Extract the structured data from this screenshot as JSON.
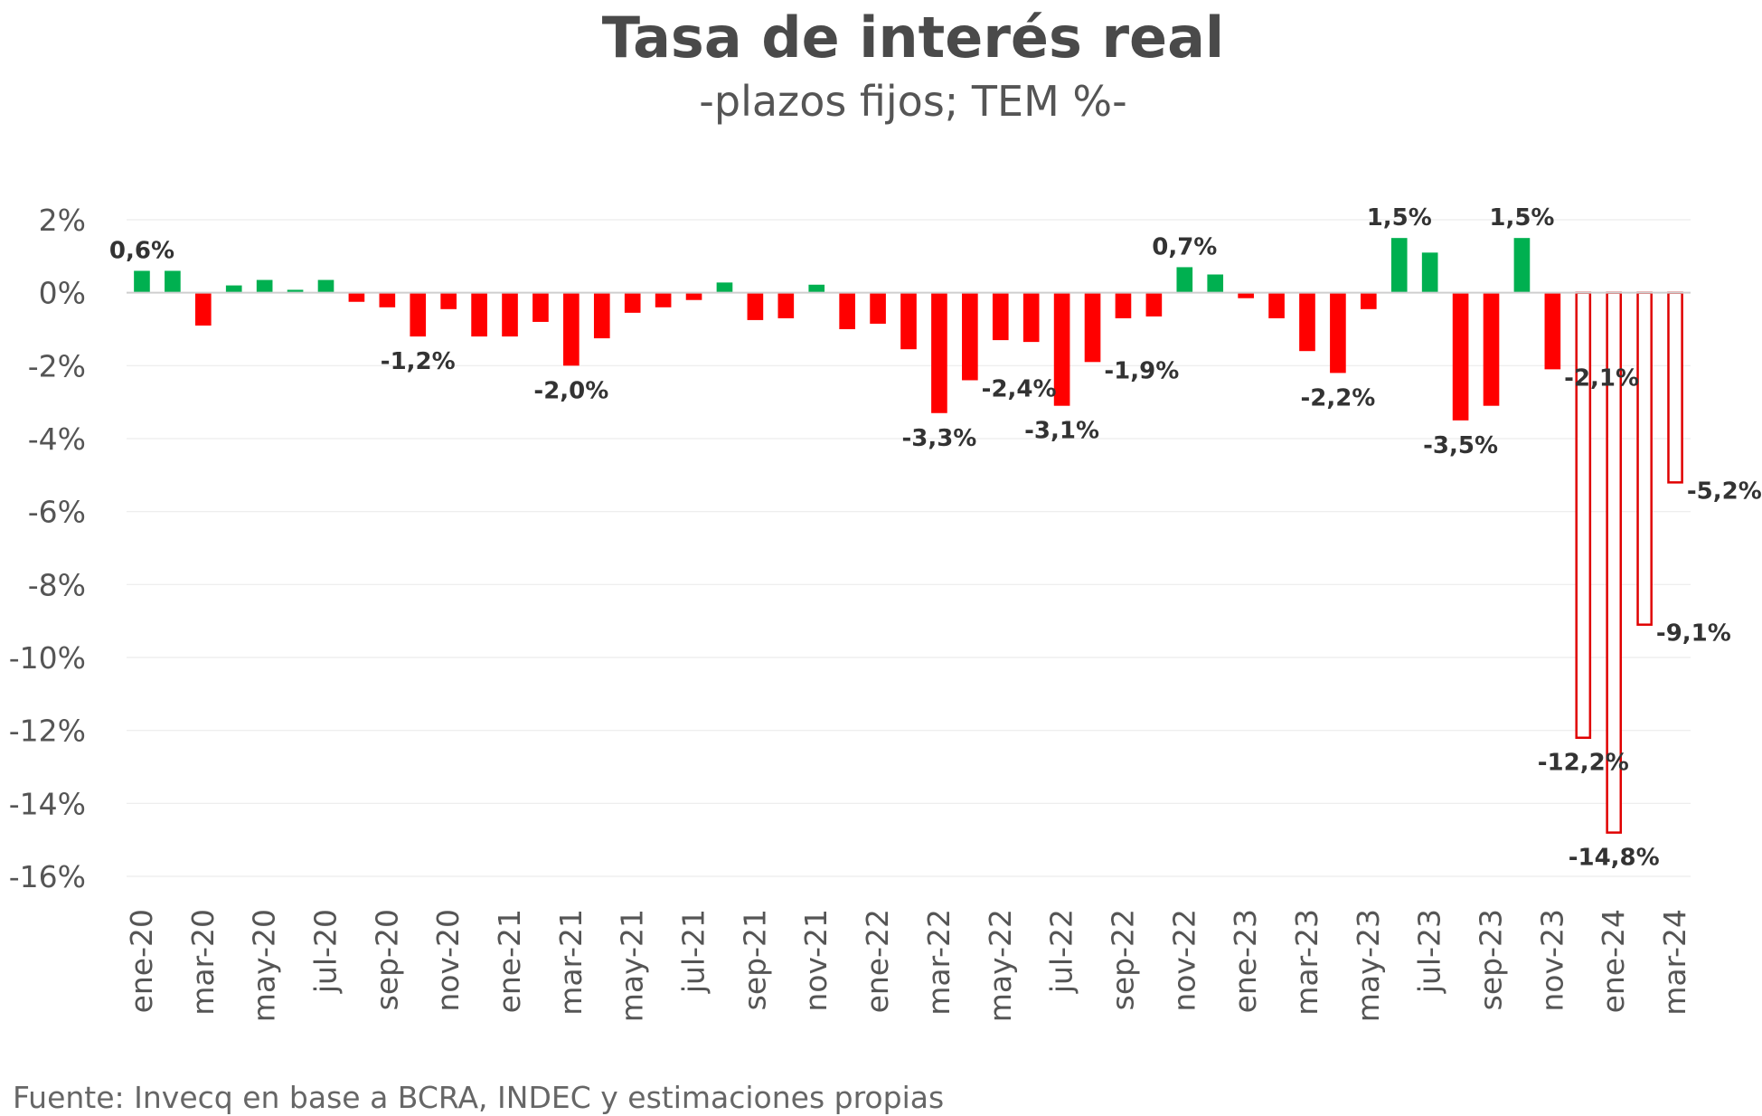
{
  "chart_data": {
    "type": "bar",
    "title": "Tasa de interés real",
    "subtitle": "-plazos fijos; TEM %-",
    "source": "Fuente: Invecq en base a BCRA, INDEC y estimaciones propias",
    "ylim": [
      -16,
      2
    ],
    "yticks": [
      2,
      0,
      -2,
      -4,
      -6,
      -8,
      -10,
      -12,
      -14,
      -16
    ],
    "ytick_labels": [
      "2%",
      "0%",
      "-2%",
      "-4%",
      "-6%",
      "-8%",
      "-10%",
      "-12%",
      "-14%",
      "-16%"
    ],
    "grid": true,
    "colors": {
      "positive": "#00b050",
      "negative": "#ff0000",
      "estimate_fill": "#ffffff",
      "estimate_border": "#e00000",
      "grid": "#ececec"
    },
    "categories": [
      "ene-20",
      "feb-20",
      "mar-20",
      "abr-20",
      "may-20",
      "jun-20",
      "jul-20",
      "ago-20",
      "sep-20",
      "oct-20",
      "nov-20",
      "dic-20",
      "ene-21",
      "feb-21",
      "mar-21",
      "abr-21",
      "may-21",
      "jun-21",
      "jul-21",
      "ago-21",
      "sep-21",
      "oct-21",
      "nov-21",
      "dic-21",
      "ene-22",
      "feb-22",
      "mar-22",
      "abr-22",
      "may-22",
      "jun-22",
      "jul-22",
      "ago-22",
      "sep-22",
      "oct-22",
      "nov-22",
      "dic-22",
      "ene-23",
      "feb-23",
      "mar-23",
      "abr-23",
      "may-23",
      "jun-23",
      "jul-23",
      "ago-23",
      "sep-23",
      "oct-23",
      "nov-23",
      "dic-23",
      "ene-24",
      "feb-24",
      "mar-24"
    ],
    "values": [
      0.6,
      0.6,
      -0.9,
      0.2,
      0.35,
      0.08,
      0.35,
      -0.25,
      -0.4,
      -1.2,
      -0.45,
      -1.2,
      -1.2,
      -0.8,
      -2.0,
      -1.25,
      -0.55,
      -0.4,
      -0.2,
      0.28,
      -0.75,
      -0.7,
      0.22,
      -1.0,
      -0.85,
      -1.55,
      -3.3,
      -2.4,
      -1.3,
      -1.35,
      -3.1,
      -1.9,
      -0.7,
      -0.65,
      0.7,
      0.5,
      -0.15,
      -0.7,
      -1.6,
      -2.2,
      -0.45,
      1.5,
      1.1,
      -3.5,
      -3.1,
      1.5,
      -2.1,
      -12.2,
      -14.8,
      -9.1,
      -5.2
    ],
    "estimated_from_index": 47,
    "xtick_labels": [
      "ene-20",
      "mar-20",
      "may-20",
      "jul-20",
      "sep-20",
      "nov-20",
      "ene-21",
      "mar-21",
      "may-21",
      "jul-21",
      "sep-21",
      "nov-21",
      "ene-22",
      "mar-22",
      "may-22",
      "jul-22",
      "sep-22",
      "nov-22",
      "ene-23",
      "mar-23",
      "may-23",
      "jul-23",
      "sep-23",
      "nov-23",
      "ene-24",
      "mar-24"
    ],
    "data_labels": [
      {
        "index": 0,
        "text": "0,6%",
        "placement": "above"
      },
      {
        "index": 9,
        "text": "-1,2%",
        "placement": "below"
      },
      {
        "index": 14,
        "text": "-2,0%",
        "placement": "below"
      },
      {
        "index": 26,
        "text": "-3,3%",
        "placement": "below"
      },
      {
        "index": 27,
        "text": "-2,4%",
        "placement": "right"
      },
      {
        "index": 30,
        "text": "-3,1%",
        "placement": "below"
      },
      {
        "index": 31,
        "text": "-1,9%",
        "placement": "right"
      },
      {
        "index": 34,
        "text": "0,7%",
        "placement": "above"
      },
      {
        "index": 39,
        "text": "-2,2%",
        "placement": "below"
      },
      {
        "index": 41,
        "text": "1,5%",
        "placement": "above"
      },
      {
        "index": 43,
        "text": "-3,5%",
        "placement": "below"
      },
      {
        "index": 45,
        "text": "1,5%",
        "placement": "above"
      },
      {
        "index": 46,
        "text": "-2,1%",
        "placement": "right"
      },
      {
        "index": 47,
        "text": "-12,2%",
        "placement": "below"
      },
      {
        "index": 48,
        "text": "-14,8%",
        "placement": "below"
      },
      {
        "index": 49,
        "text": "-9,1%",
        "placement": "right"
      },
      {
        "index": 50,
        "text": "-5,2%",
        "placement": "right"
      }
    ]
  }
}
